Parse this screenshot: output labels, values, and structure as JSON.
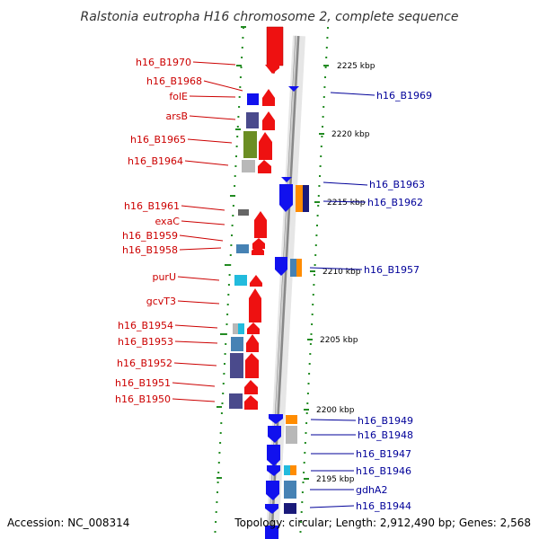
{
  "title": "Ralstonia eutropha H16 chromosome 2, complete sequence",
  "footer": {
    "accession": "Accession: NC_008314",
    "topology": "Topology: circular; Length: 2,912,490 bp; Genes: 2,568"
  },
  "scale_labels": [
    "2225 kbp",
    "2220 kbp",
    "2215 kbp",
    "2210 kbp",
    "2205 kbp",
    "2200 kbp",
    "2195 kbp"
  ],
  "left_labels": [
    "h16_B1970",
    "h16_B1968",
    "folE",
    "arsB",
    "h16_B1965",
    "h16_B1964",
    "h16_B1961",
    "exaC",
    "h16_B1959",
    "h16_B1958",
    "purU",
    "gcvT3",
    "h16_B1954",
    "h16_B1953",
    "h16_B1952",
    "h16_B1951",
    "h16_B1950"
  ],
  "right_labels": [
    "h16_B1969",
    "h16_B1963",
    "h16_B1962",
    "h16_B1957",
    "h16_B1949",
    "h16_B1948",
    "h16_B1947",
    "h16_B1946",
    "gdhA2",
    "h16_B1944"
  ],
  "colors": {
    "forward_gene": "#ee1111",
    "reverse_gene": "#1111ee",
    "cog_purple": "#4a4a8c",
    "cog_olive": "#6b8e23",
    "cog_gray": "#b8b8b8",
    "cog_orange": "#ff8c00",
    "cog_cyan": "#22bbdd",
    "cog_steel": "#4682b4",
    "tick_green": "#228b22",
    "left_label": "#cc0000",
    "right_label": "#000099"
  }
}
